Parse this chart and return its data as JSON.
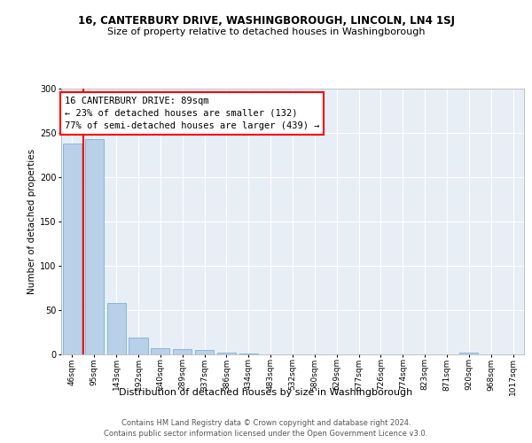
{
  "title_line1": "16, CANTERBURY DRIVE, WASHINGBOROUGH, LINCOLN, LN4 1SJ",
  "title_line2": "Size of property relative to detached houses in Washingborough",
  "xlabel": "Distribution of detached houses by size in Washingborough",
  "ylabel": "Number of detached properties",
  "footer_line1": "Contains HM Land Registry data © Crown copyright and database right 2024.",
  "footer_line2": "Contains public sector information licensed under the Open Government Licence v3.0.",
  "annotation_line1": "16 CANTERBURY DRIVE: 89sqm",
  "annotation_line2": "← 23% of detached houses are smaller (132)",
  "annotation_line3": "77% of semi-detached houses are larger (439) →",
  "bin_labels": [
    "46sqm",
    "95sqm",
    "143sqm",
    "192sqm",
    "240sqm",
    "289sqm",
    "337sqm",
    "386sqm",
    "434sqm",
    "483sqm",
    "532sqm",
    "580sqm",
    "629sqm",
    "677sqm",
    "726sqm",
    "774sqm",
    "823sqm",
    "871sqm",
    "920sqm",
    "968sqm",
    "1017sqm"
  ],
  "bar_heights": [
    238,
    243,
    58,
    19,
    7,
    6,
    5,
    2,
    1,
    0,
    0,
    0,
    0,
    0,
    0,
    0,
    0,
    0,
    2,
    0,
    0
  ],
  "bar_color": "#b8d0e8",
  "bar_edge_color": "#6aaad4",
  "red_line_x": 0.5,
  "ylim_max": 300,
  "yticks": [
    0,
    50,
    100,
    150,
    200,
    250,
    300
  ],
  "background_color": "#e8eef6",
  "title1_fontsize": 8.5,
  "title2_fontsize": 8.0,
  "ylabel_fontsize": 7.5,
  "xlabel_fontsize": 8.0,
  "tick_fontsize": 6.5,
  "footer_fontsize": 6.0,
  "annotation_fontsize": 7.5
}
